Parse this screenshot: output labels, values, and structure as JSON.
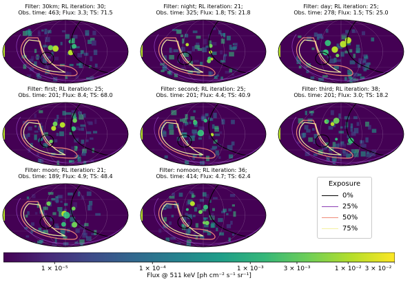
{
  "chart_data": {
    "type": "heatmap",
    "projection": "mollweide all-sky",
    "panels": [
      {
        "filter": "30km",
        "rl_iteration": 30,
        "obs_time": 463,
        "flux": 3.3,
        "ts": 71.5,
        "line1": "Filter: 30km; RL iteration: 30;",
        "line2": "Obs. time: 463; Flux: 3.3; TS: 71.5"
      },
      {
        "filter": "night",
        "rl_iteration": 21,
        "obs_time": 325,
        "flux": 1.8,
        "ts": 21.8,
        "line1": "Filter: night; RL iteration: 21;",
        "line2": "Obs. time: 325; Flux: 1.8; TS: 21.8"
      },
      {
        "filter": "day",
        "rl_iteration": 25,
        "obs_time": 278,
        "flux": 1.5,
        "ts": 25.0,
        "line1": "Filter: day; RL iteration: 25;",
        "line2": "Obs. time: 278; Flux: 1.5; TS: 25.0"
      },
      {
        "filter": "first",
        "rl_iteration": 25,
        "obs_time": 201,
        "flux": 8.4,
        "ts": 68.0,
        "line1": "Filter: first; RL iteration: 25;",
        "line2": "Obs. time: 201; Flux: 8.4; TS: 68.0"
      },
      {
        "filter": "second",
        "rl_iteration": 25,
        "obs_time": 201,
        "flux": 4.4,
        "ts": 40.9,
        "line1": "Filter: second; RL iteration: 25;",
        "line2": "Obs. time: 201; Flux: 4.4; TS: 40.9"
      },
      {
        "filter": "third",
        "rl_iteration": 38,
        "obs_time": 201,
        "flux": 3.0,
        "ts": 18.2,
        "line1": "Filter: third; RL iteration: 38;",
        "line2": "Obs. time: 201; Flux: 3.0; TS: 18.2"
      },
      {
        "filter": "moon",
        "rl_iteration": 21,
        "obs_time": 189,
        "flux": 4.9,
        "ts": 48.4,
        "line1": "Filter: moon; RL iteration: 21;",
        "line2": "Obs. time: 189; Flux: 4.9; TS: 48.4"
      },
      {
        "filter": "nomoon",
        "rl_iteration": 36,
        "obs_time": 414,
        "flux": 4.7,
        "ts": 62.4,
        "line1": "Filter: nomoon; RL iteration: 36;",
        "line2": "Obs. time: 414; Flux: 4.7; TS: 62.4"
      }
    ],
    "legend": {
      "title": "Exposure",
      "placement": "bottom-right",
      "entries": [
        {
          "label": "0%",
          "color": "#000000"
        },
        {
          "label": "25%",
          "color": "#8a3cb4"
        },
        {
          "label": "50%",
          "color": "#f08a78"
        },
        {
          "label": "75%",
          "color": "#f4f1a0"
        }
      ]
    },
    "colorbar": {
      "label": "Flux @ 511 keV [ph cm⁻² s⁻¹ sr⁻¹]",
      "scale": "log",
      "range": [
        3e-06,
        0.03
      ],
      "colormap": "viridis",
      "ticks": [
        {
          "value": 1e-05,
          "label": "1 × 10⁻⁵"
        },
        {
          "value": 0.0001,
          "label": "1 × 10⁻⁴"
        },
        {
          "value": 0.001,
          "label": "1 × 10⁻³"
        },
        {
          "value": 0.003,
          "label": "3 × 10⁻³"
        },
        {
          "value": 0.01,
          "label": "1 × 10⁻²"
        },
        {
          "value": 0.03,
          "label": "3 × 10⁻²"
        }
      ]
    }
  },
  "colors": {
    "background": "#440154",
    "viridis": [
      "#440154",
      "#482878",
      "#3e4a89",
      "#31688e",
      "#26828e",
      "#1f9e89",
      "#35b779",
      "#6ece58",
      "#b5de2b",
      "#fde725"
    ]
  }
}
